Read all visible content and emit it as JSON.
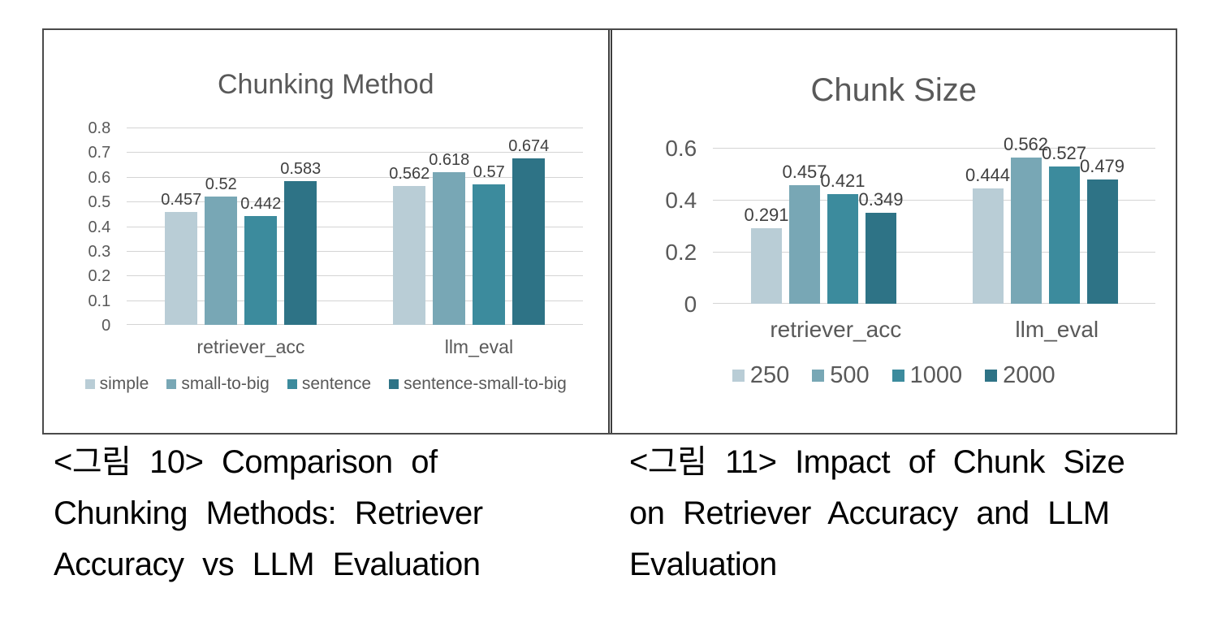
{
  "chart_data": [
    {
      "type": "bar",
      "title": "Chunking Method",
      "categories": [
        "retriever_acc",
        "llm_eval"
      ],
      "series": [
        {
          "name": "simple",
          "color": "#b9cdd6",
          "values": [
            0.457,
            0.562
          ]
        },
        {
          "name": "small-to-big",
          "color": "#78a7b5",
          "values": [
            0.52,
            0.618
          ]
        },
        {
          "name": "sentence",
          "color": "#3c8b9d",
          "values": [
            0.442,
            0.57
          ]
        },
        {
          "name": "sentence-small-to-big",
          "color": "#2e7386",
          "values": [
            0.583,
            0.674
          ]
        }
      ],
      "xlabel": "",
      "ylabel": "",
      "ylim": [
        0,
        0.8
      ],
      "y_ticks": [
        0,
        0.1,
        0.2,
        0.3,
        0.4,
        0.5,
        0.6,
        0.7,
        0.8
      ],
      "grid": true,
      "data_labels": true,
      "legend_position": "bottom"
    },
    {
      "type": "bar",
      "title": "Chunk Size",
      "categories": [
        "retriever_acc",
        "llm_eval"
      ],
      "series": [
        {
          "name": "250",
          "color": "#b9cdd6",
          "values": [
            0.291,
            0.444
          ]
        },
        {
          "name": "500",
          "color": "#78a7b5",
          "values": [
            0.457,
            0.562
          ]
        },
        {
          "name": "1000",
          "color": "#3c8b9d",
          "values": [
            0.421,
            0.527
          ]
        },
        {
          "name": "2000",
          "color": "#2e7386",
          "values": [
            0.349,
            0.479
          ]
        }
      ],
      "xlabel": "",
      "ylabel": "",
      "ylim": [
        0,
        0.6
      ],
      "y_ticks": [
        0,
        0.2,
        0.4,
        0.6
      ],
      "grid": true,
      "data_labels": true,
      "legend_position": "bottom"
    }
  ],
  "captions": [
    {
      "lines": [
        "<그림 10> Comparison of",
        "Chunking Methods: Retriever",
        "Accuracy vs LLM Evaluation"
      ]
    },
    {
      "lines": [
        "<그림 11> Impact of Chunk Size",
        "on Retriever Accuracy and LLM",
        "Evaluation"
      ]
    }
  ],
  "colors": {
    "chart_text": "#595959",
    "data_label_text": "#404040",
    "gridline": "#d4d4d4",
    "table_border": "#4a4a4a",
    "caption_text": "#000000"
  }
}
